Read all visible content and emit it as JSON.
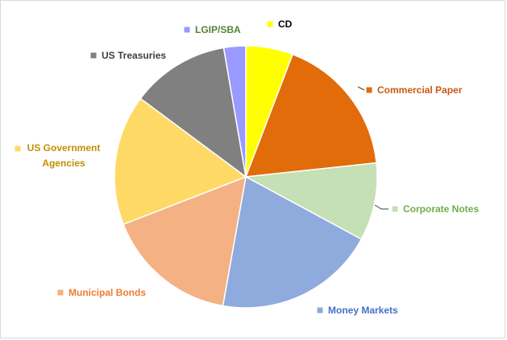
{
  "chart_data": {
    "type": "pie",
    "categories": [
      "CD",
      "Commercial Paper",
      "Corporate Notes",
      "Money Markets",
      "Municipal Bonds",
      "US Government Agencies",
      "US Treasuries",
      "LGIP/SBA"
    ],
    "values": [
      5.8,
      17.5,
      9.6,
      19.9,
      16.3,
      16.1,
      12.1,
      2.7
    ],
    "colors": [
      "#ffff00",
      "#e26b0a",
      "#c5e0b4",
      "#8faadc",
      "#f4b183",
      "#ffd966",
      "#808080",
      "#9999ff"
    ],
    "label_colors": [
      "#000000",
      "#c55a11",
      "#70ad47",
      "#4472c4",
      "#ed7d31",
      "#bf9000",
      "#404040",
      "#548235"
    ]
  }
}
